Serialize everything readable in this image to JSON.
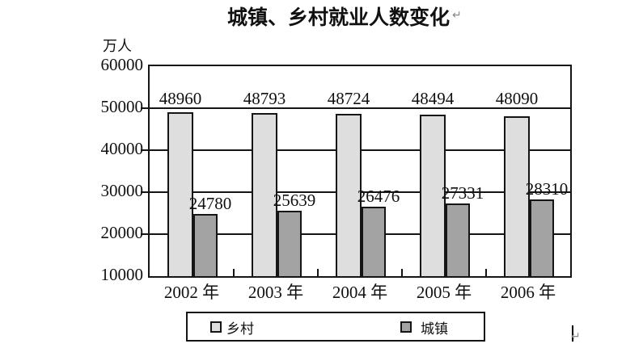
{
  "title": {
    "text": "城镇、乡村就业人数变化",
    "return_mark": "↵"
  },
  "document": {
    "cursor_return_mark": "↵"
  },
  "chart_data": {
    "type": "bar",
    "title": "城镇、乡村就业人数变化",
    "ylabel": "万人",
    "xlabel": "",
    "categories": [
      "2002 年",
      "2003 年",
      "2004 年",
      "2005 年",
      "2006 年"
    ],
    "series": [
      {
        "key": "rural",
        "name": "乡村",
        "color": "#dedede",
        "values": [
          48960,
          48793,
          48724,
          48494,
          48090
        ]
      },
      {
        "key": "urban",
        "name": "城镇",
        "color": "#a3a3a3",
        "values": [
          24780,
          25639,
          26476,
          27331,
          28310
        ]
      }
    ],
    "ylim": [
      10000,
      60000
    ],
    "yticks": [
      60000,
      50000,
      40000,
      30000,
      20000,
      10000
    ],
    "grid": true,
    "bar_labels": true,
    "legend_position": "bottom",
    "border_color": "#151515"
  }
}
